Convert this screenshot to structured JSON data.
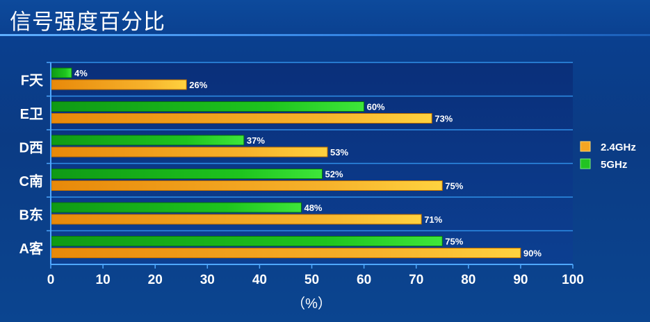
{
  "page": {
    "title": "信号强度百分比"
  },
  "chart_data": {
    "type": "bar",
    "orientation": "horizontal",
    "categories": [
      "A客",
      "B东",
      "C南",
      "D西",
      "E卫",
      "F天"
    ],
    "series": [
      {
        "name": "2.4GHz",
        "color": "#f5a623",
        "values": [
          90,
          71,
          75,
          53,
          73,
          26
        ]
      },
      {
        "name": "5GHz",
        "color": "#22c322",
        "values": [
          75,
          48,
          52,
          37,
          60,
          4
        ]
      }
    ],
    "data_labels": {
      "2.4GHz": [
        "90%",
        "71%",
        "75%",
        "53%",
        "73%",
        "26%"
      ],
      "5GHz": [
        "75%",
        "48%",
        "52%",
        "37%",
        "60%",
        "4%"
      ]
    },
    "x_ticks": [
      "0",
      "10",
      "20",
      "30",
      "40",
      "50",
      "60",
      "70",
      "80",
      "90",
      "100"
    ],
    "xlim": [
      0,
      100
    ],
    "xlabel": "（%）",
    "ylabel": "",
    "grid": true,
    "legend_position": "right"
  }
}
